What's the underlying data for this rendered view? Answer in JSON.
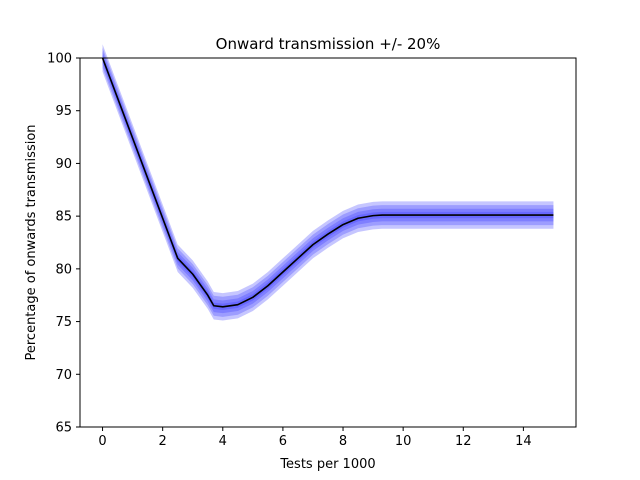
{
  "chart_data": {
    "type": "line",
    "title": "Onward transmission +/- 20%",
    "xlabel": "Tests per 1000",
    "ylabel": "Percentage of onwards transmission",
    "xlim": [
      -0.75,
      15.75
    ],
    "ylim": [
      65,
      100
    ],
    "xticks": [
      0,
      2,
      4,
      6,
      8,
      10,
      12,
      14
    ],
    "yticks": [
      65,
      70,
      75,
      80,
      85,
      90,
      95,
      100
    ],
    "grid": false,
    "legend": "none",
    "series": [
      {
        "role": "central",
        "color": "#000000",
        "x": [
          0,
          0.5,
          1,
          1.5,
          2,
          2.5,
          3,
          3.5,
          3.7,
          4,
          4.5,
          5,
          5.5,
          6,
          6.5,
          7,
          7.5,
          8,
          8.5,
          9,
          9.3,
          10,
          11,
          12,
          13,
          14,
          15
        ],
        "y": [
          100,
          96.2,
          92.4,
          88.6,
          84.8,
          81.0,
          79.5,
          77.5,
          76.5,
          76.4,
          76.6,
          77.3,
          78.4,
          79.7,
          81.0,
          82.3,
          83.3,
          84.2,
          84.8,
          85.05,
          85.1,
          85.1,
          85.1,
          85.1,
          85.1,
          85.1,
          85.1
        ]
      }
    ],
    "bands": [
      {
        "color": "#3333ff",
        "opacity": 0.28,
        "lower_offset": -1.3,
        "upper_offset": 1.3
      },
      {
        "color": "#3333ff",
        "opacity": 0.28,
        "lower_offset": -0.95,
        "upper_offset": 0.95
      },
      {
        "color": "#3333ff",
        "opacity": 0.28,
        "lower_offset": -0.6,
        "upper_offset": 0.6
      },
      {
        "color": "#3333ff",
        "opacity": 0.28,
        "lower_offset": -0.3,
        "upper_offset": 0.3
      }
    ]
  }
}
